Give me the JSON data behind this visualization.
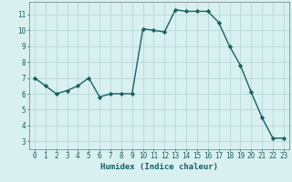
{
  "x": [
    0,
    1,
    2,
    3,
    4,
    5,
    6,
    7,
    8,
    9,
    10,
    11,
    12,
    13,
    14,
    15,
    16,
    17,
    18,
    19,
    20,
    21,
    22,
    23
  ],
  "y": [
    7.0,
    6.5,
    6.0,
    6.2,
    6.5,
    7.0,
    5.8,
    6.0,
    6.0,
    6.0,
    10.1,
    10.0,
    9.9,
    11.3,
    11.2,
    11.2,
    11.2,
    10.5,
    9.0,
    7.8,
    6.1,
    4.5,
    3.2,
    3.2
  ],
  "line_color": "#1a6060",
  "marker": "D",
  "markersize": 2.2,
  "bg_color": "#d8f0f0",
  "grid_color": "#b8d8d8",
  "xlabel": "Humidex (Indice chaleur)",
  "xlim": [
    -0.5,
    23.5
  ],
  "ylim": [
    2.5,
    11.8
  ],
  "yticks": [
    3,
    4,
    5,
    6,
    7,
    8,
    9,
    10,
    11
  ],
  "xticks": [
    0,
    1,
    2,
    3,
    4,
    5,
    6,
    7,
    8,
    9,
    10,
    11,
    12,
    13,
    14,
    15,
    16,
    17,
    18,
    19,
    20,
    21,
    22,
    23
  ],
  "tick_color": "#1a6060",
  "axis_color": "#888888",
  "xlabel_fontsize": 6.5,
  "tick_fontsize": 5.5,
  "linewidth": 1.0
}
